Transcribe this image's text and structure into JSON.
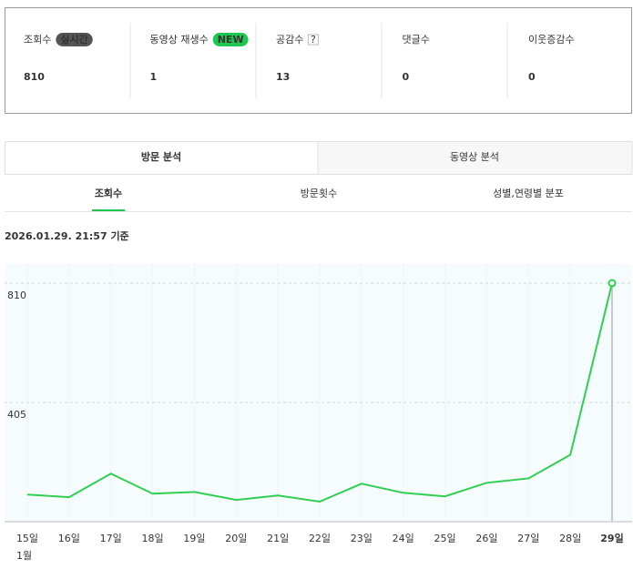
{
  "stats": [
    {
      "label": "조회수",
      "badge": "실시간",
      "value": 810
    },
    {
      "label": "동영상 재생수",
      "badge": "NEW",
      "value": 1
    },
    {
      "label": "공감수",
      "help": "?",
      "value": 13
    },
    {
      "label": "댓글수",
      "value": 0
    },
    {
      "label": "이웃증감수",
      "value": 0
    }
  ],
  "tabs": [
    "방문 분석",
    "동영상 분석"
  ],
  "subtabs": [
    "조회수",
    "방문횟수",
    "성별,연령별 분포"
  ],
  "timestamp": "2026.01.29. 21:57 기준",
  "chart_data": {
    "type": "line",
    "categories": [
      "15일",
      "16일",
      "17일",
      "18일",
      "19일",
      "20일",
      "21일",
      "22일",
      "23일",
      "24일",
      "25일",
      "26일",
      "27일",
      "28일",
      "29일"
    ],
    "month_label": "1월",
    "values": [
      92,
      83,
      163,
      95,
      101,
      74,
      89,
      68,
      129,
      98,
      86,
      132,
      147,
      227,
      810
    ],
    "color": "#2fcf52",
    "ylim": [
      0,
      875
    ],
    "yticks": [
      405,
      810
    ],
    "grid": true
  }
}
